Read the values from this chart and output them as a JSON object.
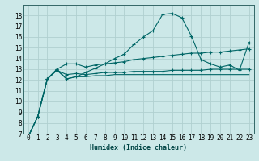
{
  "title": "",
  "xlabel": "Humidex (Indice chaleur)",
  "bg_color": "#cce8e8",
  "grid_color": "#b0d0d0",
  "line_color": "#006666",
  "xlim": [
    -0.5,
    23.5
  ],
  "ylim": [
    7,
    19
  ],
  "xticks": [
    0,
    1,
    2,
    3,
    4,
    5,
    6,
    7,
    8,
    9,
    10,
    11,
    12,
    13,
    14,
    15,
    16,
    17,
    18,
    19,
    20,
    21,
    22,
    23
  ],
  "yticks": [
    7,
    8,
    9,
    10,
    11,
    12,
    13,
    14,
    15,
    16,
    17,
    18
  ],
  "series": [
    [
      6.7,
      8.6,
      12.1,
      13.0,
      12.1,
      12.3,
      12.7,
      13.1,
      13.5,
      14.0,
      14.4,
      15.3,
      16.0,
      16.6,
      18.1,
      18.2,
      17.8,
      16.1,
      13.9,
      13.5,
      13.2,
      13.4,
      12.9,
      15.5
    ],
    [
      6.7,
      8.6,
      12.1,
      13.0,
      13.5,
      13.5,
      13.2,
      13.4,
      13.5,
      13.6,
      13.7,
      13.9,
      14.0,
      14.1,
      14.2,
      14.3,
      14.4,
      14.5,
      14.5,
      14.6,
      14.6,
      14.7,
      14.8,
      14.9
    ],
    [
      6.7,
      8.6,
      12.1,
      12.9,
      12.5,
      12.6,
      12.5,
      12.6,
      12.7,
      12.7,
      12.7,
      12.8,
      12.8,
      12.8,
      12.8,
      12.9,
      12.9,
      12.9,
      12.9,
      13.0,
      13.0,
      13.0,
      13.0,
      13.0
    ],
    [
      6.7,
      8.6,
      12.1,
      12.9,
      12.1,
      12.3,
      12.3,
      12.4,
      12.4,
      12.5,
      12.5,
      12.5,
      12.5,
      12.5,
      12.5,
      12.5,
      12.5,
      12.5,
      12.5,
      12.5,
      12.5,
      12.5,
      12.5,
      12.5
    ]
  ],
  "markers": [
    true,
    true,
    true,
    false
  ],
  "label_fontsize": 5.5,
  "xlabel_fontsize": 6.0
}
